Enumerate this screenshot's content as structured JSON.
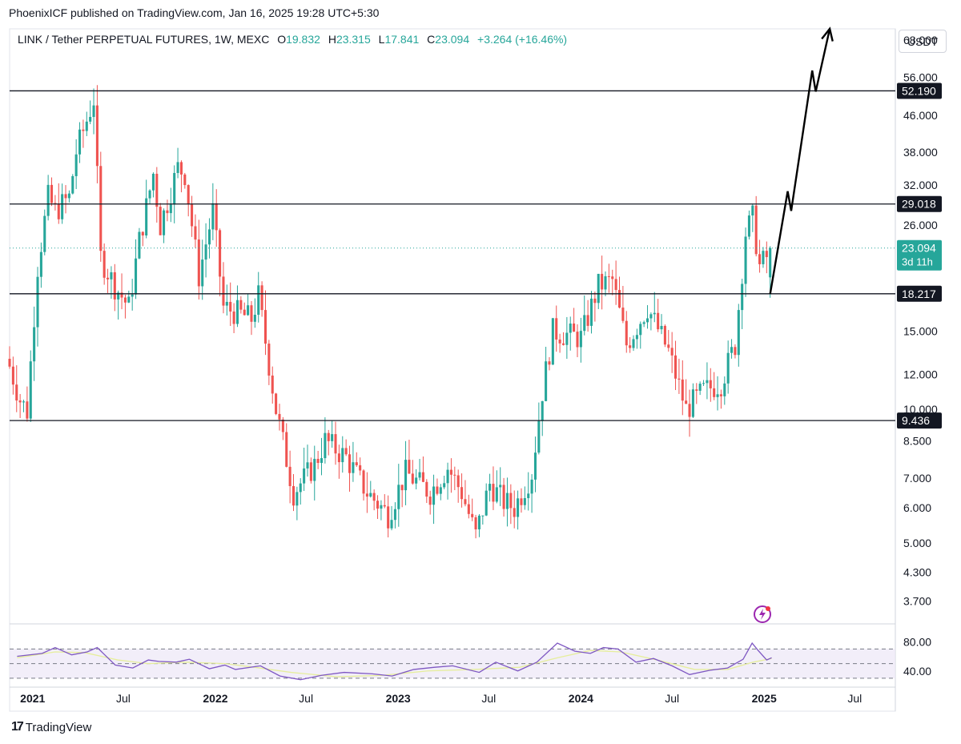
{
  "header": {
    "publisher_line": "PhoenixICF published on TradingView.com, Jan 16, 2025 19:28 UTC+5:30",
    "symbol": "LINK / Tether PERPETUAL FUTURES, 1W, MEXC",
    "o_label": "O",
    "o_value": "19.832",
    "h_label": "H",
    "h_value": "23.315",
    "l_label": "L",
    "l_value": "17.841",
    "c_label": "C",
    "c_value": "23.094",
    "change": "+3.264 (+16.46%)",
    "currency": "USDT"
  },
  "footer": {
    "brand": "TradingView"
  },
  "colors": {
    "up": "#26a69a",
    "down": "#ef5350",
    "rsi": "#7e57c2",
    "rsi_ma": "#f0e68c",
    "last_price": "#26a69a"
  },
  "chart_data": [
    {
      "type": "candlestick",
      "title": "LINK / Tether PERPETUAL FUTURES, 1W, MEXC",
      "y_scale": "log",
      "ylim": [
        3.3,
        72
      ],
      "y_ticks": [
        "68.000",
        "56.000",
        "46.000",
        "38.000",
        "32.000",
        "26.000",
        "15.000",
        "12.000",
        "10.000",
        "8.500",
        "7.000",
        "6.000",
        "5.000",
        "4.300",
        "3.700"
      ],
      "y_tick_values": [
        68,
        56,
        46,
        38,
        32,
        26,
        15,
        12,
        10,
        8.5,
        7,
        6,
        5,
        4.3,
        3.7
      ],
      "x_ticks": [
        "2021",
        "Jul",
        "2022",
        "Jul",
        "2023",
        "Jul",
        "2024",
        "Jul",
        "2025",
        "Jul"
      ],
      "x_tick_dates": [
        "2021-01-01",
        "2021-07-01",
        "2022-01-01",
        "2022-07-01",
        "2023-01-01",
        "2023-07-01",
        "2024-01-01",
        "2024-07-01",
        "2025-01-01",
        "2025-07-01"
      ],
      "x_range": [
        "2020-11-16",
        "2025-09-20"
      ],
      "horizontal_levels": [
        {
          "value": 52.19,
          "label": "52.190"
        },
        {
          "value": 29.018,
          "label": "29.018"
        },
        {
          "value": 18.217,
          "label": "18.217"
        },
        {
          "value": 9.436,
          "label": "9.436"
        }
      ],
      "last_price": {
        "value": 23.094,
        "label": "23.094",
        "countdown": "3d 11h"
      },
      "projection_path": [
        {
          "date": "2025-01-13",
          "value": 18.2
        },
        {
          "date": "2025-02-17",
          "value": 31
        },
        {
          "date": "2025-02-24",
          "value": 28
        },
        {
          "date": "2025-04-07",
          "value": 58
        },
        {
          "date": "2025-04-14",
          "value": 52
        },
        {
          "date": "2025-05-12",
          "value": 72
        }
      ],
      "candle_anchors": [
        {
          "date": "2020-11-16",
          "value": 13
        },
        {
          "date": "2020-11-23",
          "value": 12.5
        },
        {
          "date": "2020-12-14",
          "value": 10.5
        },
        {
          "date": "2020-12-28",
          "value": 9.9
        },
        {
          "date": "2021-01-18",
          "value": 21
        },
        {
          "date": "2021-02-08",
          "value": 30
        },
        {
          "date": "2021-02-22",
          "value": 28
        },
        {
          "date": "2021-03-22",
          "value": 30
        },
        {
          "date": "2021-04-05",
          "value": 38
        },
        {
          "date": "2021-05-10",
          "value": 50
        },
        {
          "date": "2021-05-24",
          "value": 22
        },
        {
          "date": "2021-06-21",
          "value": 19
        },
        {
          "date": "2021-07-19",
          "value": 17
        },
        {
          "date": "2021-08-09",
          "value": 24
        },
        {
          "date": "2021-09-06",
          "value": 34
        },
        {
          "date": "2021-09-20",
          "value": 26
        },
        {
          "date": "2021-10-25",
          "value": 35
        },
        {
          "date": "2021-11-08",
          "value": 34
        },
        {
          "date": "2021-12-06",
          "value": 20
        },
        {
          "date": "2022-01-03",
          "value": 28
        },
        {
          "date": "2022-01-24",
          "value": 17
        },
        {
          "date": "2022-03-21",
          "value": 16
        },
        {
          "date": "2022-04-04",
          "value": 18
        },
        {
          "date": "2022-05-09",
          "value": 10
        },
        {
          "date": "2022-06-13",
          "value": 6.5
        },
        {
          "date": "2022-07-25",
          "value": 7.5
        },
        {
          "date": "2022-08-15",
          "value": 8.5
        },
        {
          "date": "2022-09-26",
          "value": 7.8
        },
        {
          "date": "2022-11-07",
          "value": 6.5
        },
        {
          "date": "2022-12-19",
          "value": 5.8
        },
        {
          "date": "2023-01-23",
          "value": 7.2
        },
        {
          "date": "2023-03-13",
          "value": 6.5
        },
        {
          "date": "2023-04-17",
          "value": 7.4
        },
        {
          "date": "2023-05-15",
          "value": 6.5
        },
        {
          "date": "2023-06-12",
          "value": 5.2
        },
        {
          "date": "2023-07-10",
          "value": 6.8
        },
        {
          "date": "2023-08-07",
          "value": 6.2
        },
        {
          "date": "2023-08-28",
          "value": 6.0
        },
        {
          "date": "2023-10-02",
          "value": 7.2
        },
        {
          "date": "2023-10-23",
          "value": 11
        },
        {
          "date": "2023-11-13",
          "value": 15
        },
        {
          "date": "2024-01-08",
          "value": 14.5
        },
        {
          "date": "2024-02-12",
          "value": 19
        },
        {
          "date": "2024-03-11",
          "value": 19.5
        },
        {
          "date": "2024-04-08",
          "value": 14
        },
        {
          "date": "2024-05-20",
          "value": 17
        },
        {
          "date": "2024-07-01",
          "value": 13.5
        },
        {
          "date": "2024-08-05",
          "value": 10
        },
        {
          "date": "2024-09-09",
          "value": 11
        },
        {
          "date": "2024-10-14",
          "value": 11.5
        },
        {
          "date": "2024-11-11",
          "value": 14
        },
        {
          "date": "2024-12-02",
          "value": 25
        },
        {
          "date": "2024-12-16",
          "value": 27
        },
        {
          "date": "2024-12-30",
          "value": 21
        },
        {
          "date": "2025-01-13",
          "value": 22
        }
      ],
      "last_candle": {
        "open": 19.832,
        "high": 23.315,
        "low": 17.841,
        "close": 23.094
      }
    },
    {
      "type": "line",
      "title": "",
      "ylim": [
        20,
        100
      ],
      "y_ticks": [
        "80.00",
        "40.00"
      ],
      "y_tick_values": [
        80,
        40
      ],
      "bands": [
        70,
        50,
        30
      ],
      "x_range": [
        "2020-11-16",
        "2025-09-20"
      ],
      "series": [
        {
          "name": "",
          "color": "#7e57c2",
          "points": [
            [
              "2020-12-01",
              60
            ],
            [
              "2021-01-20",
              64
            ],
            [
              "2021-02-15",
              72
            ],
            [
              "2021-03-20",
              62
            ],
            [
              "2021-04-20",
              66
            ],
            [
              "2021-05-10",
              72
            ],
            [
              "2021-06-15",
              48
            ],
            [
              "2021-07-20",
              44
            ],
            [
              "2021-08-20",
              55
            ],
            [
              "2021-09-10",
              53
            ],
            [
              "2021-10-15",
              52
            ],
            [
              "2021-11-10",
              56
            ],
            [
              "2021-12-20",
              43
            ],
            [
              "2022-01-20",
              48
            ],
            [
              "2022-02-10",
              42
            ],
            [
              "2022-04-01",
              47
            ],
            [
              "2022-05-10",
              33
            ],
            [
              "2022-06-20",
              28
            ],
            [
              "2022-08-01",
              34
            ],
            [
              "2022-09-15",
              38
            ],
            [
              "2022-11-10",
              36
            ],
            [
              "2022-12-20",
              33
            ],
            [
              "2023-02-01",
              42
            ],
            [
              "2023-03-15",
              45
            ],
            [
              "2023-04-20",
              47
            ],
            [
              "2023-06-12",
              38
            ],
            [
              "2023-07-15",
              52
            ],
            [
              "2023-08-28",
              40
            ],
            [
              "2023-10-05",
              52
            ],
            [
              "2023-11-15",
              78
            ],
            [
              "2023-12-20",
              67
            ],
            [
              "2024-01-20",
              64
            ],
            [
              "2024-02-15",
              72
            ],
            [
              "2024-03-15",
              70
            ],
            [
              "2024-04-20",
              52
            ],
            [
              "2024-05-25",
              57
            ],
            [
              "2024-07-01",
              47
            ],
            [
              "2024-08-05",
              35
            ],
            [
              "2024-09-15",
              41
            ],
            [
              "2024-10-20",
              44
            ],
            [
              "2024-11-20",
              56
            ],
            [
              "2024-12-08",
              78
            ],
            [
              "2024-12-20",
              68
            ],
            [
              "2025-01-06",
              55
            ],
            [
              "2025-01-16",
              58
            ]
          ]
        },
        {
          "name": "",
          "color": "#e6ee9c",
          "points": [
            [
              "2020-12-01",
              58
            ],
            [
              "2021-02-15",
              66
            ],
            [
              "2021-04-15",
              65
            ],
            [
              "2021-06-20",
              55
            ],
            [
              "2021-08-20",
              50
            ],
            [
              "2021-11-01",
              52
            ],
            [
              "2022-01-20",
              50
            ],
            [
              "2022-03-20",
              45
            ],
            [
              "2022-06-01",
              38
            ],
            [
              "2022-09-01",
              32
            ],
            [
              "2022-12-01",
              34
            ],
            [
              "2023-03-01",
              40
            ],
            [
              "2023-06-01",
              42
            ],
            [
              "2023-09-01",
              45
            ],
            [
              "2023-11-15",
              58
            ],
            [
              "2024-01-20",
              68
            ],
            [
              "2024-03-20",
              66
            ],
            [
              "2024-06-01",
              55
            ],
            [
              "2024-08-15",
              42
            ],
            [
              "2024-10-20",
              42
            ],
            [
              "2024-12-10",
              52
            ],
            [
              "2025-01-16",
              57
            ]
          ]
        }
      ]
    }
  ]
}
